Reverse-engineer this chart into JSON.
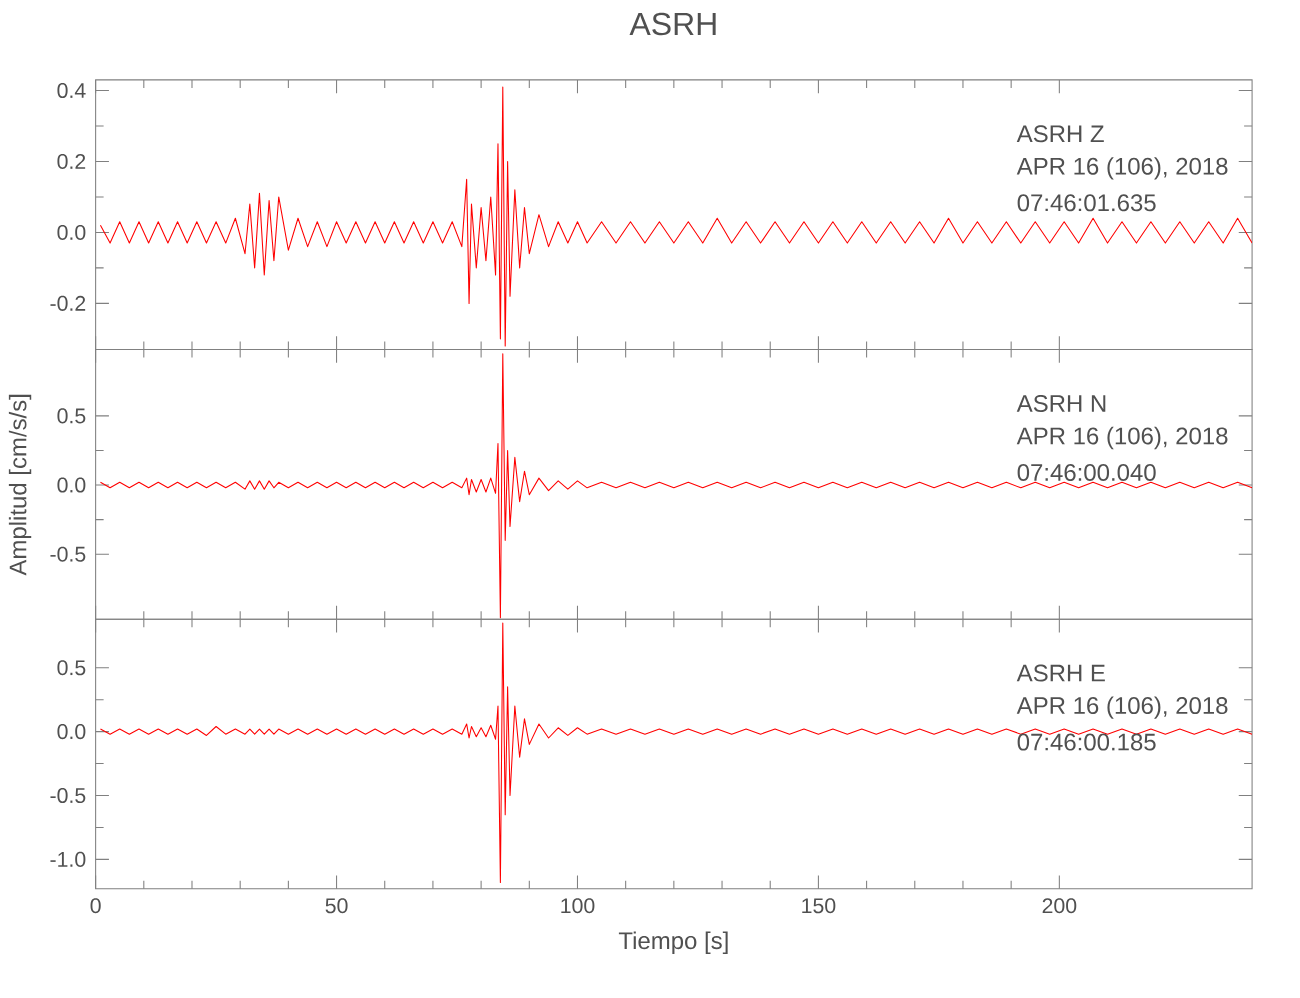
{
  "chart_data": [
    {
      "type": "line",
      "title": "ASRH",
      "xlim": [
        0,
        240
      ],
      "ylim": [
        -0.33,
        0.43
      ],
      "tick_labels": "y",
      "xticks": [
        0,
        50,
        100,
        150,
        200
      ],
      "yticks": [
        {
          "value": -0.2,
          "label": "-0.2"
        },
        {
          "value": 0,
          "label": "0.0"
        },
        {
          "value": 0.2,
          "label": "0.2"
        },
        {
          "value": 0.4,
          "label": "0.4"
        }
      ],
      "annotations": [
        "ASRH   Z",
        "APR 16 (106), 2018",
        "07:46:01.635"
      ],
      "series": [
        {
          "color": "#ff0000",
          "x": [
            1,
            3,
            5,
            7,
            9,
            11,
            13,
            15,
            17,
            19,
            21,
            23,
            25,
            27,
            29,
            31,
            32,
            33,
            34,
            35,
            36,
            37,
            38,
            40,
            42,
            44,
            46,
            48,
            50,
            52,
            54,
            56,
            58,
            60,
            62,
            64,
            66,
            68,
            70,
            72,
            74,
            76,
            77,
            77.5,
            78,
            79,
            80,
            81,
            82,
            83,
            83.5,
            84,
            84.5,
            85,
            85.5,
            86,
            87,
            88,
            89,
            90,
            92,
            94,
            96,
            98,
            100,
            102,
            105,
            108,
            111,
            114,
            117,
            120,
            123,
            126,
            129,
            132,
            135,
            138,
            141,
            144,
            147,
            150,
            153,
            156,
            159,
            162,
            165,
            168,
            171,
            174,
            177,
            180,
            183,
            186,
            189,
            192,
            195,
            198,
            201,
            204,
            207,
            210,
            213,
            216,
            219,
            222,
            225,
            228,
            231,
            234,
            237,
            240
          ],
          "values": [
            0.02,
            -0.03,
            0.03,
            -0.03,
            0.03,
            -0.03,
            0.03,
            -0.03,
            0.03,
            -0.03,
            0.03,
            -0.03,
            0.03,
            -0.03,
            0.04,
            -0.06,
            0.08,
            -0.1,
            0.11,
            -0.12,
            0.09,
            -0.08,
            0.1,
            -0.05,
            0.04,
            -0.04,
            0.03,
            -0.04,
            0.03,
            -0.03,
            0.03,
            -0.03,
            0.03,
            -0.03,
            0.03,
            -0.03,
            0.03,
            -0.03,
            0.03,
            -0.03,
            0.03,
            -0.04,
            0.15,
            -0.2,
            0.08,
            -0.1,
            0.07,
            -0.08,
            0.1,
            -0.12,
            0.25,
            -0.3,
            0.41,
            -0.32,
            0.2,
            -0.18,
            0.12,
            -0.1,
            0.07,
            -0.06,
            0.05,
            -0.04,
            0.03,
            -0.03,
            0.03,
            -0.03,
            0.03,
            -0.03,
            0.03,
            -0.03,
            0.03,
            -0.03,
            0.03,
            -0.03,
            0.04,
            -0.03,
            0.03,
            -0.03,
            0.03,
            -0.03,
            0.03,
            -0.03,
            0.03,
            -0.03,
            0.03,
            -0.03,
            0.03,
            -0.03,
            0.03,
            -0.03,
            0.04,
            -0.03,
            0.03,
            -0.03,
            0.03,
            -0.03,
            0.03,
            -0.03,
            0.03,
            -0.03,
            0.04,
            -0.03,
            0.03,
            -0.03,
            0.03,
            -0.03,
            0.03,
            -0.03,
            0.03,
            -0.03,
            0.04,
            -0.03
          ]
        }
      ]
    },
    {
      "type": "line",
      "ylabel": "Amplitud [cm/s/s]",
      "xlim": [
        0,
        240
      ],
      "ylim": [
        -0.97,
        0.98
      ],
      "tick_labels": "y",
      "xticks": [
        0,
        50,
        100,
        150,
        200
      ],
      "yticks": [
        {
          "value": -0.5,
          "label": "-0.5"
        },
        {
          "value": 0,
          "label": "0.0"
        },
        {
          "value": 0.5,
          "label": "0.5"
        }
      ],
      "annotations": [
        "ASRH   N",
        "APR 16 (106), 2018",
        "07:46:00.040"
      ],
      "series": [
        {
          "color": "#ff0000",
          "x": [
            1,
            3,
            5,
            7,
            9,
            11,
            13,
            15,
            17,
            19,
            21,
            23,
            25,
            27,
            29,
            31,
            32,
            33,
            34,
            35,
            36,
            37,
            38,
            40,
            42,
            44,
            46,
            48,
            50,
            52,
            54,
            56,
            58,
            60,
            62,
            64,
            66,
            68,
            70,
            72,
            74,
            76,
            77,
            77.5,
            78,
            79,
            80,
            81,
            82,
            83,
            83.5,
            84,
            84.5,
            85,
            85.5,
            86,
            87,
            88,
            89,
            90,
            92,
            94,
            96,
            98,
            100,
            102,
            105,
            108,
            111,
            114,
            117,
            120,
            123,
            126,
            129,
            132,
            135,
            138,
            141,
            144,
            147,
            150,
            153,
            156,
            159,
            162,
            165,
            168,
            171,
            174,
            177,
            180,
            183,
            186,
            189,
            192,
            195,
            198,
            201,
            204,
            207,
            210,
            213,
            216,
            219,
            222,
            225,
            228,
            231,
            234,
            237,
            240
          ],
          "values": [
            0.02,
            -0.02,
            0.02,
            -0.02,
            0.02,
            -0.02,
            0.02,
            -0.02,
            0.02,
            -0.02,
            0.02,
            -0.02,
            0.02,
            -0.02,
            0.02,
            -0.03,
            0.03,
            -0.03,
            0.03,
            -0.03,
            0.03,
            -0.02,
            0.02,
            -0.02,
            0.02,
            -0.02,
            0.02,
            -0.02,
            0.02,
            -0.02,
            0.02,
            -0.02,
            0.02,
            -0.02,
            0.02,
            -0.02,
            0.02,
            -0.02,
            0.02,
            -0.02,
            0.02,
            -0.02,
            0.05,
            -0.07,
            0.04,
            -0.05,
            0.04,
            -0.05,
            0.05,
            -0.06,
            0.3,
            -0.96,
            0.95,
            -0.4,
            0.25,
            -0.3,
            0.2,
            -0.12,
            0.1,
            -0.07,
            0.05,
            -0.04,
            0.03,
            -0.03,
            0.03,
            -0.02,
            0.02,
            -0.02,
            0.02,
            -0.02,
            0.02,
            -0.02,
            0.02,
            -0.02,
            0.02,
            -0.02,
            0.02,
            -0.02,
            0.02,
            -0.02,
            0.02,
            -0.02,
            0.02,
            -0.02,
            0.02,
            -0.02,
            0.02,
            -0.02,
            0.02,
            -0.02,
            0.02,
            -0.02,
            0.02,
            -0.02,
            0.02,
            -0.02,
            0.02,
            -0.02,
            0.02,
            -0.02,
            0.02,
            -0.02,
            0.02,
            -0.02,
            0.02,
            -0.02,
            0.02,
            -0.02,
            0.02,
            -0.02,
            0.02,
            -0.02
          ]
        }
      ]
    },
    {
      "type": "line",
      "xlabel": "Tiempo [s]",
      "xlim": [
        0,
        240
      ],
      "ylim": [
        -1.23,
        0.88
      ],
      "xticks": [
        0,
        50,
        100,
        150,
        200
      ],
      "yticks": [
        {
          "value": -1,
          "label": "-1.0"
        },
        {
          "value": -0.5,
          "label": "-0.5"
        },
        {
          "value": 0,
          "label": "0.0"
        },
        {
          "value": 0.5,
          "label": "0.5"
        }
      ],
      "annotations": [
        "ASRH   E",
        "APR 16 (106), 2018",
        "07:46:00.185"
      ],
      "series": [
        {
          "color": "#ff0000",
          "x": [
            1,
            3,
            5,
            7,
            9,
            11,
            13,
            15,
            17,
            19,
            21,
            23,
            25,
            27,
            29,
            31,
            32,
            33,
            34,
            35,
            36,
            37,
            38,
            40,
            42,
            44,
            46,
            48,
            50,
            52,
            54,
            56,
            58,
            60,
            62,
            64,
            66,
            68,
            70,
            72,
            74,
            76,
            77,
            77.5,
            78,
            79,
            80,
            81,
            82,
            83,
            83.5,
            84,
            84.5,
            85,
            85.5,
            86,
            87,
            88,
            89,
            90,
            92,
            94,
            96,
            98,
            100,
            102,
            105,
            108,
            111,
            114,
            117,
            120,
            123,
            126,
            129,
            132,
            135,
            138,
            141,
            144,
            147,
            150,
            153,
            156,
            159,
            162,
            165,
            168,
            171,
            174,
            177,
            180,
            183,
            186,
            189,
            192,
            195,
            198,
            201,
            204,
            207,
            210,
            213,
            216,
            219,
            222,
            225,
            228,
            231,
            234,
            237,
            240
          ],
          "values": [
            0.02,
            -0.02,
            0.02,
            -0.02,
            0.02,
            -0.02,
            0.02,
            -0.02,
            0.02,
            -0.02,
            0.02,
            -0.03,
            0.04,
            -0.02,
            0.02,
            -0.02,
            0.02,
            -0.02,
            0.02,
            -0.02,
            0.02,
            -0.02,
            0.02,
            -0.02,
            0.02,
            -0.02,
            0.02,
            -0.02,
            0.02,
            -0.02,
            0.02,
            -0.02,
            0.02,
            -0.02,
            0.02,
            -0.02,
            0.02,
            -0.02,
            0.02,
            -0.02,
            0.02,
            -0.02,
            0.06,
            -0.05,
            0.04,
            -0.04,
            0.03,
            -0.04,
            0.05,
            -0.06,
            0.2,
            -1.18,
            0.85,
            -0.65,
            0.35,
            -0.5,
            0.2,
            -0.2,
            0.1,
            -0.1,
            0.06,
            -0.05,
            0.03,
            -0.03,
            0.03,
            -0.02,
            0.02,
            -0.02,
            0.02,
            -0.02,
            0.02,
            -0.02,
            0.02,
            -0.02,
            0.02,
            -0.02,
            0.02,
            -0.02,
            0.02,
            -0.02,
            0.02,
            -0.02,
            0.02,
            -0.02,
            0.02,
            -0.02,
            0.02,
            -0.02,
            0.02,
            -0.02,
            0.02,
            -0.02,
            0.02,
            -0.02,
            0.02,
            -0.02,
            0.02,
            -0.02,
            0.02,
            -0.02,
            0.02,
            -0.02,
            0.02,
            -0.02,
            0.02,
            -0.02,
            0.02,
            -0.02,
            0.02,
            -0.02,
            0.02,
            -0.02
          ]
        }
      ]
    }
  ]
}
